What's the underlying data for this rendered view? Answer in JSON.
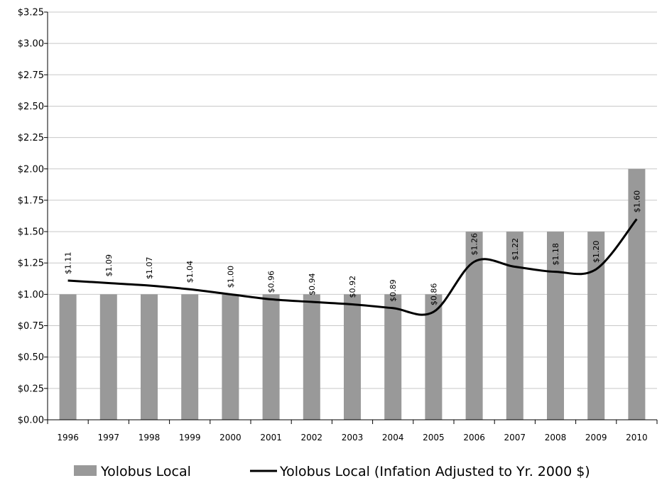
{
  "chart_data": {
    "type": "bar",
    "categories": [
      "1996",
      "1997",
      "1998",
      "1999",
      "2000",
      "2001",
      "2002",
      "2003",
      "2004",
      "2005",
      "2006",
      "2007",
      "2008",
      "2009",
      "2010"
    ],
    "series": [
      {
        "name": "Yolobus Local",
        "type": "bar",
        "color": "#999999",
        "values": [
          1.0,
          1.0,
          1.0,
          1.0,
          1.0,
          1.0,
          1.0,
          1.0,
          1.0,
          1.0,
          1.5,
          1.5,
          1.5,
          1.5,
          2.0
        ]
      },
      {
        "name": "Yolobus Local (Infation Adjusted to Yr. 2000 $)",
        "type": "line",
        "color": "#000000",
        "values": [
          1.11,
          1.09,
          1.07,
          1.04,
          1.0,
          0.96,
          0.94,
          0.92,
          0.89,
          0.86,
          1.26,
          1.22,
          1.18,
          1.2,
          1.6
        ],
        "data_labels": [
          "$1.11",
          "$1.09",
          "$1.07",
          "$1.04",
          "$1.00",
          "$0.96",
          "$0.94",
          "$0.92",
          "$0.89",
          "$0.86",
          "$1.26",
          "$1.22",
          "$1.18",
          "$1.20",
          "$1.60"
        ]
      }
    ],
    "ylim": [
      0,
      3.25
    ],
    "ytick_values": [
      0,
      0.25,
      0.5,
      0.75,
      1.0,
      1.25,
      1.5,
      1.75,
      2.0,
      2.25,
      2.5,
      2.75,
      3.0,
      3.25
    ],
    "ytick_labels": [
      "$0.00",
      "$0.25",
      "$0.50",
      "$0.75",
      "$1.00",
      "$1.25",
      "$1.50",
      "$1.75",
      "$2.00",
      "$2.25",
      "$2.50",
      "$2.75",
      "$3.00",
      "$3.25"
    ],
    "grid": true,
    "legend_position": "bottom",
    "title": "",
    "xlabel": "",
    "ylabel": ""
  }
}
